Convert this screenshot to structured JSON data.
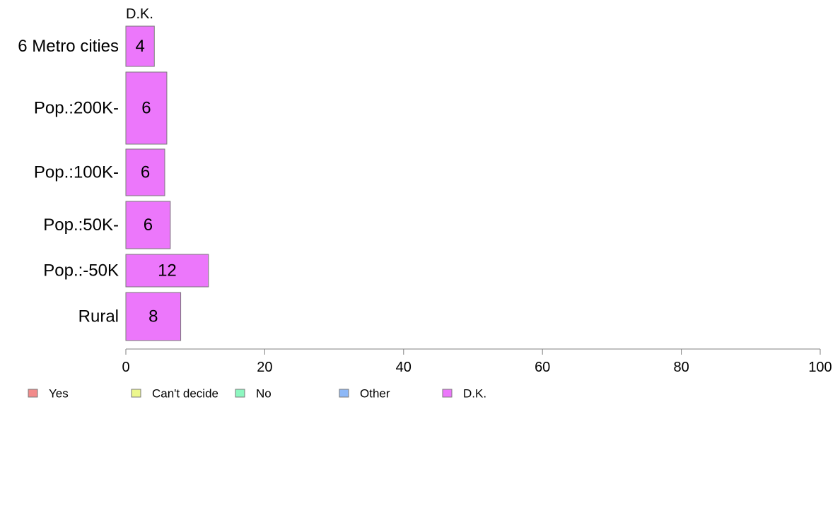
{
  "chart_data": {
    "type": "bar",
    "orientation": "horizontal",
    "series_header": "D.K.",
    "categories": [
      "6 Metro cities",
      "Pop.:200K-",
      "Pop.:100K-",
      "Pop.:50K-",
      "Pop.:-50K",
      "Rural"
    ],
    "series": [
      {
        "name": "D.K.",
        "values": [
          4,
          6,
          6,
          6,
          12,
          8
        ],
        "labels": [
          "4",
          "6",
          "6",
          "6",
          "12",
          "8"
        ]
      }
    ],
    "bar_widths": [
      4.1,
      5.9,
      5.6,
      6.4,
      11.9,
      7.9
    ],
    "xlim": [
      0,
      100
    ],
    "xticks": [
      "0",
      "20",
      "40",
      "60",
      "80",
      "100"
    ],
    "legend": {
      "placement": "bottom",
      "items": [
        {
          "name": "Yes",
          "color": "#f28b8b"
        },
        {
          "name": "Can't decide",
          "color": "#ecf78d"
        },
        {
          "name": "No",
          "color": "#8df7c0"
        },
        {
          "name": "Other",
          "color": "#8db8f7"
        },
        {
          "name": "D.K.",
          "color": "#ec77fb"
        }
      ]
    },
    "bar_color": "#ec77fb",
    "grid": false
  }
}
